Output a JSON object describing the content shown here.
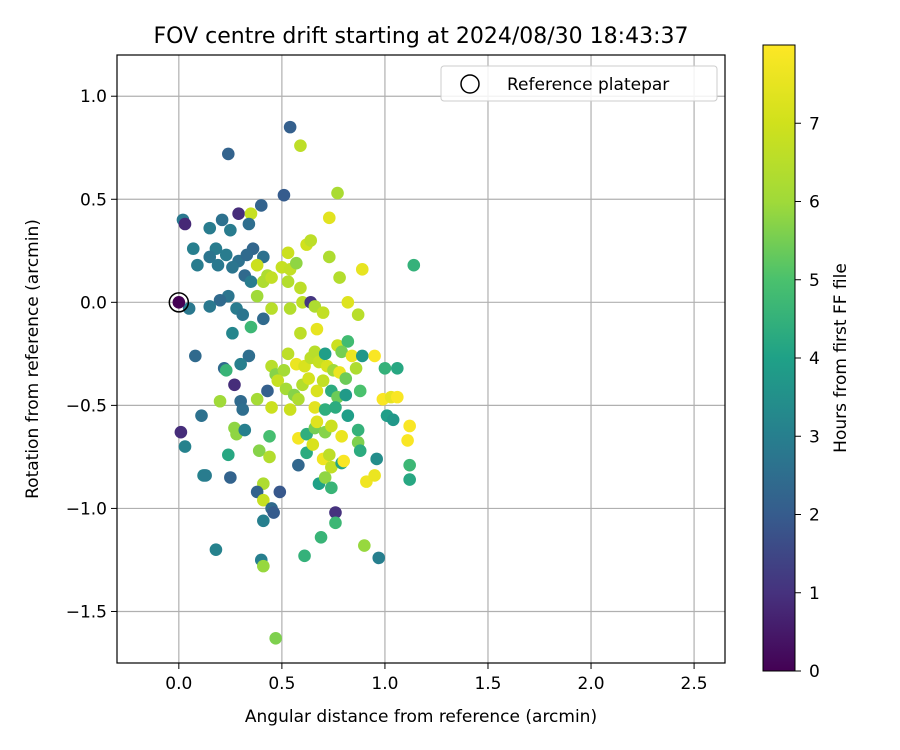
{
  "chart_data": {
    "type": "scatter",
    "title": "FOV centre drift starting at 2024/08/30 18:43:37",
    "xlabel": "Angular distance from reference (arcmin)",
    "ylabel": "Rotation from reference (arcmin)",
    "xlim": [
      -0.3,
      2.65
    ],
    "ylim": [
      -1.75,
      1.2
    ],
    "xticks": [
      0.0,
      0.5,
      1.0,
      1.5,
      2.0,
      2.5
    ],
    "xtick_labels": [
      "0.0",
      "0.5",
      "1.0",
      "1.5",
      "2.0",
      "2.5"
    ],
    "yticks": [
      1.0,
      0.5,
      0.0,
      -0.5,
      -1.0,
      -1.5
    ],
    "ytick_labels": [
      "1.0",
      "0.5",
      "0.0",
      "−0.5",
      "−1.0",
      "−1.5"
    ],
    "grid": true,
    "legend": {
      "position": "top-right",
      "entries": [
        {
          "label": "Reference platepar",
          "marker": "open-circle"
        }
      ]
    },
    "reference_point": [
      0.0,
      0.0
    ],
    "colorbar": {
      "label": "Hours from first FF file",
      "colormap": "viridis",
      "range": [
        0,
        8
      ],
      "ticks": [
        0,
        1,
        2,
        3,
        4,
        5,
        6,
        7
      ],
      "tick_labels": [
        "0",
        "1",
        "2",
        "3",
        "4",
        "5",
        "6",
        "7"
      ]
    },
    "points": [
      [
        0.54,
        0.85,
        2.1
      ],
      [
        0.59,
        0.76,
        6.6
      ],
      [
        0.24,
        0.72,
        2.2
      ],
      [
        0.77,
        0.53,
        6.2
      ],
      [
        0.51,
        0.52,
        2.0
      ],
      [
        0.02,
        0.4,
        2.8
      ],
      [
        0.03,
        0.38,
        0.8
      ],
      [
        0.29,
        0.43,
        0.9
      ],
      [
        0.4,
        0.47,
        2.2
      ],
      [
        0.35,
        0.43,
        6.8
      ],
      [
        0.73,
        0.41,
        7.4
      ],
      [
        0.15,
        0.36,
        2.9
      ],
      [
        0.21,
        0.4,
        2.6
      ],
      [
        0.25,
        0.35,
        2.9
      ],
      [
        0.34,
        0.38,
        2.5
      ],
      [
        0.07,
        0.26,
        3.0
      ],
      [
        0.18,
        0.26,
        2.9
      ],
      [
        0.36,
        0.26,
        2.3
      ],
      [
        0.23,
        0.23,
        2.9
      ],
      [
        0.29,
        0.2,
        2.6
      ],
      [
        0.33,
        0.23,
        2.4
      ],
      [
        0.41,
        0.22,
        2.6
      ],
      [
        0.53,
        0.24,
        6.9
      ],
      [
        0.62,
        0.28,
        7.0
      ],
      [
        0.64,
        0.3,
        6.6
      ],
      [
        0.73,
        0.22,
        6.3
      ],
      [
        0.89,
        0.16,
        7.5
      ],
      [
        1.14,
        0.18,
        4.5
      ],
      [
        0.09,
        0.18,
        2.9
      ],
      [
        0.15,
        0.22,
        2.7
      ],
      [
        0.19,
        0.18,
        2.8
      ],
      [
        0.26,
        0.17,
        2.7
      ],
      [
        0.38,
        0.18,
        6.9
      ],
      [
        0.43,
        0.13,
        6.3
      ],
      [
        0.5,
        0.17,
        6.8
      ],
      [
        0.54,
        0.16,
        6.7
      ],
      [
        0.57,
        0.19,
        5.8
      ],
      [
        0.78,
        0.12,
        6.4
      ],
      [
        0.32,
        0.13,
        2.4
      ],
      [
        0.35,
        0.1,
        2.9
      ],
      [
        0.41,
        0.1,
        6.3
      ],
      [
        0.45,
        0.12,
        6.7
      ],
      [
        0.53,
        0.1,
        6.4
      ],
      [
        0.59,
        0.07,
        6.6
      ],
      [
        0.38,
        0.03,
        6.0
      ],
      [
        0.24,
        0.03,
        2.7
      ],
      [
        0.2,
        0.01,
        2.4
      ],
      [
        0.15,
        -0.02,
        2.8
      ],
      [
        0.05,
        -0.03,
        2.8
      ],
      [
        0.28,
        -0.03,
        2.9
      ],
      [
        0.31,
        -0.06,
        2.7
      ],
      [
        0.41,
        -0.08,
        2.4
      ],
      [
        0.45,
        -0.03,
        6.5
      ],
      [
        0.54,
        -0.03,
        6.4
      ],
      [
        0.6,
        0.0,
        6.6
      ],
      [
        0.64,
        0.0,
        1.1
      ],
      [
        0.66,
        -0.02,
        6.3
      ],
      [
        0.7,
        -0.05,
        6.7
      ],
      [
        0.82,
        0.0,
        7.3
      ],
      [
        0.87,
        -0.06,
        6.5
      ],
      [
        0.35,
        -0.12,
        4.7
      ],
      [
        0.26,
        -0.15,
        3.2
      ],
      [
        0.59,
        -0.15,
        6.6
      ],
      [
        0.67,
        -0.13,
        7.5
      ],
      [
        0.77,
        -0.21,
        6.9
      ],
      [
        0.82,
        -0.19,
        4.8
      ],
      [
        0.79,
        -0.24,
        5.5
      ],
      [
        0.84,
        -0.26,
        7.6
      ],
      [
        0.89,
        -0.26,
        3.7
      ],
      [
        0.95,
        -0.26,
        7.9
      ],
      [
        1.0,
        -0.32,
        4.5
      ],
      [
        1.06,
        -0.32,
        4.2
      ],
      [
        0.08,
        -0.26,
        2.4
      ],
      [
        0.34,
        -0.26,
        2.5
      ],
      [
        0.22,
        -0.32,
        2.4
      ],
      [
        0.23,
        -0.33,
        4.6
      ],
      [
        0.27,
        -0.4,
        0.9
      ],
      [
        0.3,
        -0.3,
        3.0
      ],
      [
        0.45,
        -0.31,
        6.5
      ],
      [
        0.47,
        -0.35,
        5.7
      ],
      [
        0.51,
        -0.33,
        6.1
      ],
      [
        0.53,
        -0.25,
        6.6
      ],
      [
        0.57,
        -0.3,
        7.6
      ],
      [
        0.61,
        -0.31,
        7.2
      ],
      [
        0.64,
        -0.27,
        6.6
      ],
      [
        0.66,
        -0.24,
        6.5
      ],
      [
        0.68,
        -0.29,
        6.8
      ],
      [
        0.71,
        -0.25,
        3.9
      ],
      [
        0.72,
        -0.31,
        7.2
      ],
      [
        0.75,
        -0.33,
        6.0
      ],
      [
        0.78,
        -0.34,
        7.6
      ],
      [
        0.81,
        -0.37,
        5.4
      ],
      [
        0.86,
        -0.32,
        6.3
      ],
      [
        0.43,
        -0.43,
        2.1
      ],
      [
        0.48,
        -0.38,
        6.8
      ],
      [
        0.52,
        -0.42,
        6.1
      ],
      [
        0.56,
        -0.45,
        5.7
      ],
      [
        0.6,
        -0.4,
        6.4
      ],
      [
        0.63,
        -0.37,
        7.1
      ],
      [
        0.67,
        -0.43,
        7.2
      ],
      [
        0.7,
        -0.38,
        6.7
      ],
      [
        0.74,
        -0.43,
        4.3
      ],
      [
        0.77,
        -0.46,
        5.4
      ],
      [
        0.81,
        -0.45,
        3.8
      ],
      [
        0.88,
        -0.43,
        5.0
      ],
      [
        0.99,
        -0.47,
        7.9
      ],
      [
        1.03,
        -0.46,
        7.5
      ],
      [
        1.06,
        -0.46,
        7.9
      ],
      [
        0.2,
        -0.48,
        6.0
      ],
      [
        0.3,
        -0.48,
        2.4
      ],
      [
        0.31,
        -0.52,
        2.5
      ],
      [
        0.38,
        -0.47,
        6.1
      ],
      [
        0.45,
        -0.51,
        6.9
      ],
      [
        0.54,
        -0.52,
        6.9
      ],
      [
        0.58,
        -0.47,
        6.3
      ],
      [
        0.66,
        -0.51,
        7.4
      ],
      [
        0.71,
        -0.52,
        4.4
      ],
      [
        0.76,
        -0.51,
        4.3
      ],
      [
        0.82,
        -0.55,
        3.9
      ],
      [
        1.01,
        -0.55,
        3.9
      ],
      [
        1.04,
        -0.57,
        3.7
      ],
      [
        1.12,
        -0.6,
        7.9
      ],
      [
        0.11,
        -0.55,
        2.6
      ],
      [
        0.27,
        -0.61,
        5.8
      ],
      [
        0.28,
        -0.64,
        5.8
      ],
      [
        0.32,
        -0.62,
        3.0
      ],
      [
        0.44,
        -0.65,
        4.9
      ],
      [
        0.58,
        -0.66,
        7.8
      ],
      [
        0.62,
        -0.64,
        4.4
      ],
      [
        0.66,
        -0.61,
        5.5
      ],
      [
        0.67,
        -0.58,
        7.3
      ],
      [
        0.71,
        -0.63,
        5.7
      ],
      [
        0.74,
        -0.6,
        6.9
      ],
      [
        0.79,
        -0.65,
        7.6
      ],
      [
        0.87,
        -0.62,
        4.5
      ],
      [
        0.87,
        -0.68,
        5.6
      ],
      [
        1.11,
        -0.67,
        7.9
      ],
      [
        0.01,
        -0.63,
        0.9
      ],
      [
        0.03,
        -0.7,
        3.1
      ],
      [
        0.24,
        -0.74,
        4.2
      ],
      [
        0.39,
        -0.72,
        5.7
      ],
      [
        0.44,
        -0.75,
        6.4
      ],
      [
        0.62,
        -0.73,
        4.3
      ],
      [
        0.65,
        -0.69,
        7.2
      ],
      [
        0.7,
        -0.76,
        7.7
      ],
      [
        0.73,
        -0.74,
        6.6
      ],
      [
        0.74,
        -0.8,
        6.7
      ],
      [
        0.79,
        -0.78,
        4.1
      ],
      [
        0.8,
        -0.77,
        7.9
      ],
      [
        0.88,
        -0.72,
        4.3
      ],
      [
        0.96,
        -0.76,
        3.4
      ],
      [
        1.12,
        -0.79,
        4.7
      ],
      [
        0.12,
        -0.84,
        3.1
      ],
      [
        0.13,
        -0.84,
        2.9
      ],
      [
        0.25,
        -0.85,
        2.2
      ],
      [
        0.41,
        -0.88,
        6.3
      ],
      [
        0.58,
        -0.79,
        2.3
      ],
      [
        0.68,
        -0.88,
        4.0
      ],
      [
        0.71,
        -0.85,
        5.8
      ],
      [
        0.74,
        -0.9,
        4.6
      ],
      [
        0.91,
        -0.87,
        7.7
      ],
      [
        0.95,
        -0.84,
        7.6
      ],
      [
        1.12,
        -0.86,
        4.2
      ],
      [
        0.38,
        -0.92,
        2.2
      ],
      [
        0.41,
        -0.96,
        6.8
      ],
      [
        0.45,
        -1.0,
        2.4
      ],
      [
        0.46,
        -1.02,
        2.0
      ],
      [
        0.49,
        -0.92,
        1.9
      ],
      [
        0.76,
        -1.02,
        1.0
      ],
      [
        0.41,
        -1.06,
        3.0
      ],
      [
        0.76,
        -1.07,
        4.7
      ],
      [
        0.69,
        -1.14,
        4.6
      ],
      [
        0.18,
        -1.2,
        3.1
      ],
      [
        0.9,
        -1.18,
        5.9
      ],
      [
        0.4,
        -1.25,
        3.0
      ],
      [
        0.61,
        -1.23,
        4.5
      ],
      [
        0.41,
        -1.28,
        5.9
      ],
      [
        0.97,
        -1.24,
        3.0
      ],
      [
        0.47,
        -1.63,
        5.6
      ]
    ]
  }
}
